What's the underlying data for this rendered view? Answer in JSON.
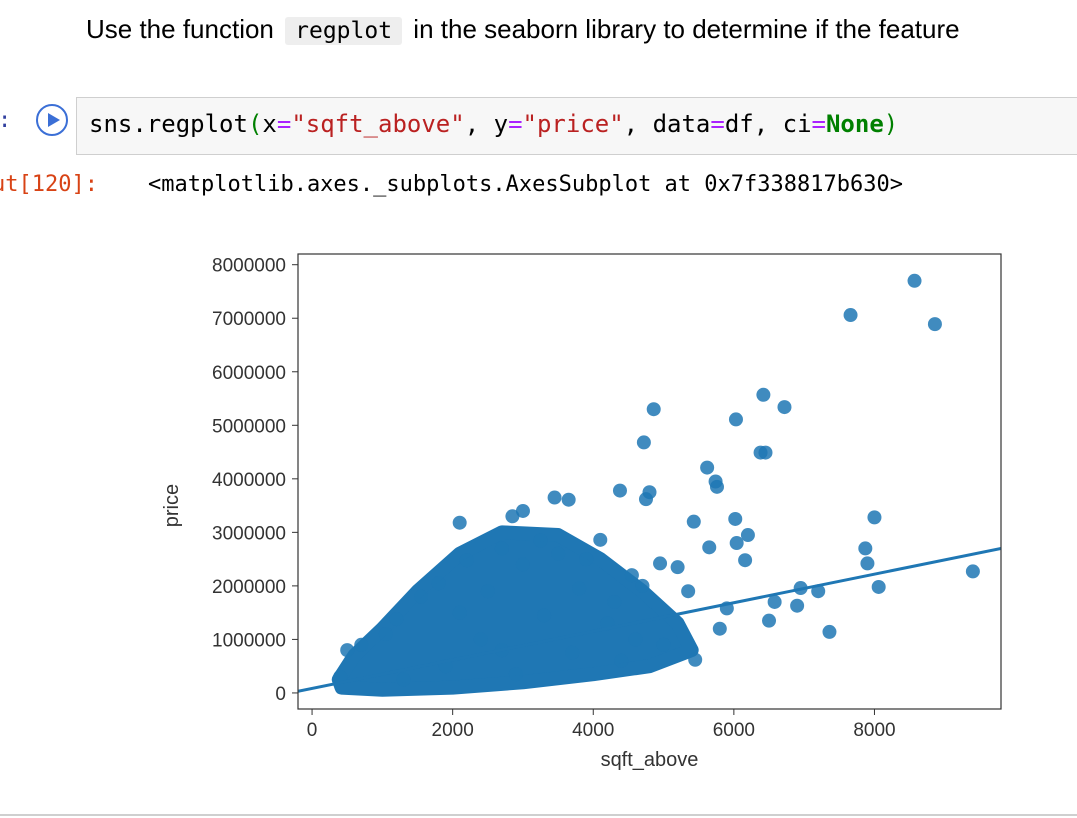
{
  "markdown": {
    "before_code": "Use the function",
    "code": "regplot",
    "after_code": "in the seaborn library to determine if the feature"
  },
  "cell": {
    "in_prompt": ":",
    "code_tokens": [
      {
        "t": "sns.regplot",
        "c": "plain"
      },
      {
        "t": "(",
        "c": "paren"
      },
      {
        "t": "x",
        "c": "plain"
      },
      {
        "t": "=",
        "c": "eq"
      },
      {
        "t": "\"sqft_above\"",
        "c": "str"
      },
      {
        "t": ", ",
        "c": "plain"
      },
      {
        "t": "y",
        "c": "plain"
      },
      {
        "t": "=",
        "c": "eq"
      },
      {
        "t": "\"price\"",
        "c": "str"
      },
      {
        "t": ", ",
        "c": "plain"
      },
      {
        "t": "data",
        "c": "plain"
      },
      {
        "t": "=",
        "c": "eq"
      },
      {
        "t": "df, ",
        "c": "plain"
      },
      {
        "t": "ci",
        "c": "plain"
      },
      {
        "t": "=",
        "c": "eq"
      },
      {
        "t": "None",
        "c": "kw"
      },
      {
        "t": ")",
        "c": "paren"
      }
    ],
    "out_prompt": "ut[120]:",
    "output": "<matplotlib.axes._subplots.AxesSubplot at 0x7f338817b630>"
  },
  "colors": {
    "point": "#1f77b4",
    "line": "#1f77b4"
  },
  "chart_data": {
    "type": "scatter",
    "xlabel": "sqft_above",
    "ylabel": "price",
    "xlim": [
      -200,
      9800
    ],
    "ylim": [
      -300000,
      8200000
    ],
    "xticks": [
      0,
      2000,
      4000,
      6000,
      8000
    ],
    "yticks": [
      0,
      1000000,
      2000000,
      3000000,
      4000000,
      5000000,
      6000000,
      7000000,
      8000000
    ],
    "grid": false,
    "regression_line": {
      "x": [
        -200,
        9800
      ],
      "y": [
        30000,
        2700000
      ]
    },
    "points": [
      [
        8570,
        7700000
      ],
      [
        7660,
        7060000
      ],
      [
        8860,
        6890000
      ],
      [
        6720,
        5340000
      ],
      [
        6420,
        5570000
      ],
      [
        4860,
        5300000
      ],
      [
        6030,
        5110000
      ],
      [
        4720,
        4680000
      ],
      [
        6380,
        4490000
      ],
      [
        6450,
        4490000
      ],
      [
        5760,
        3850000
      ],
      [
        5620,
        4210000
      ],
      [
        5740,
        3950000
      ],
      [
        4800,
        3750000
      ],
      [
        4750,
        3620000
      ],
      [
        4380,
        3780000
      ],
      [
        3450,
        3650000
      ],
      [
        3650,
        3610000
      ],
      [
        3000,
        3400000
      ],
      [
        2850,
        3300000
      ],
      [
        2100,
        3180000
      ],
      [
        5430,
        3200000
      ],
      [
        6020,
        3250000
      ],
      [
        8000,
        3280000
      ],
      [
        7870,
        2700000
      ],
      [
        7900,
        2420000
      ],
      [
        9400,
        2270000
      ],
      [
        6200,
        2950000
      ],
      [
        6040,
        2800000
      ],
      [
        5650,
        2720000
      ],
      [
        6160,
        2480000
      ],
      [
        6950,
        1960000
      ],
      [
        7200,
        1900000
      ],
      [
        8060,
        1980000
      ],
      [
        7360,
        1140000
      ],
      [
        5800,
        1200000
      ],
      [
        5450,
        620000
      ],
      [
        6580,
        1700000
      ],
      [
        6900,
        1630000
      ],
      [
        6500,
        1350000
      ],
      [
        5900,
        1580000
      ],
      [
        5200,
        2350000
      ],
      [
        5350,
        1900000
      ],
      [
        4950,
        2420000
      ],
      [
        4700,
        2000000
      ],
      [
        4550,
        2200000
      ],
      [
        3900,
        2500000
      ],
      [
        4100,
        2860000
      ],
      [
        3250,
        2850000
      ],
      [
        2700,
        2700000
      ],
      [
        2200,
        2480000
      ],
      [
        1800,
        2050000
      ],
      [
        1550,
        1800000
      ],
      [
        1200,
        1380000
      ],
      [
        1050,
        1100000
      ],
      [
        700,
        900000
      ],
      [
        400,
        300000
      ],
      [
        500,
        800000
      ],
      [
        2500,
        1900000
      ],
      [
        3000,
        2400000
      ],
      [
        3500,
        2600000
      ],
      [
        3800,
        1950000
      ],
      [
        4300,
        1700000
      ],
      [
        4200,
        1300000
      ],
      [
        4600,
        1000000
      ],
      [
        5000,
        900000
      ],
      [
        4400,
        600000
      ],
      [
        3700,
        750000
      ],
      [
        2900,
        350000
      ],
      [
        2400,
        1000000
      ],
      [
        1900,
        500000
      ],
      [
        1300,
        250000
      ],
      [
        2100,
        1500000
      ],
      [
        3300,
        1450000
      ],
      [
        2700,
        800000
      ]
    ],
    "dense_cloud": [
      [
        420,
        100000
      ],
      [
        1000,
        60000
      ],
      [
        2000,
        100000
      ],
      [
        3000,
        200000
      ],
      [
        4000,
        350000
      ],
      [
        4800,
        500000
      ],
      [
        5400,
        800000
      ],
      [
        5200,
        1300000
      ],
      [
        4700,
        1900000
      ],
      [
        4100,
        2500000
      ],
      [
        3500,
        2950000
      ],
      [
        2700,
        3000000
      ],
      [
        2100,
        2600000
      ],
      [
        1500,
        1900000
      ],
      [
        1000,
        1200000
      ],
      [
        600,
        700000
      ],
      [
        380,
        250000
      ]
    ]
  }
}
